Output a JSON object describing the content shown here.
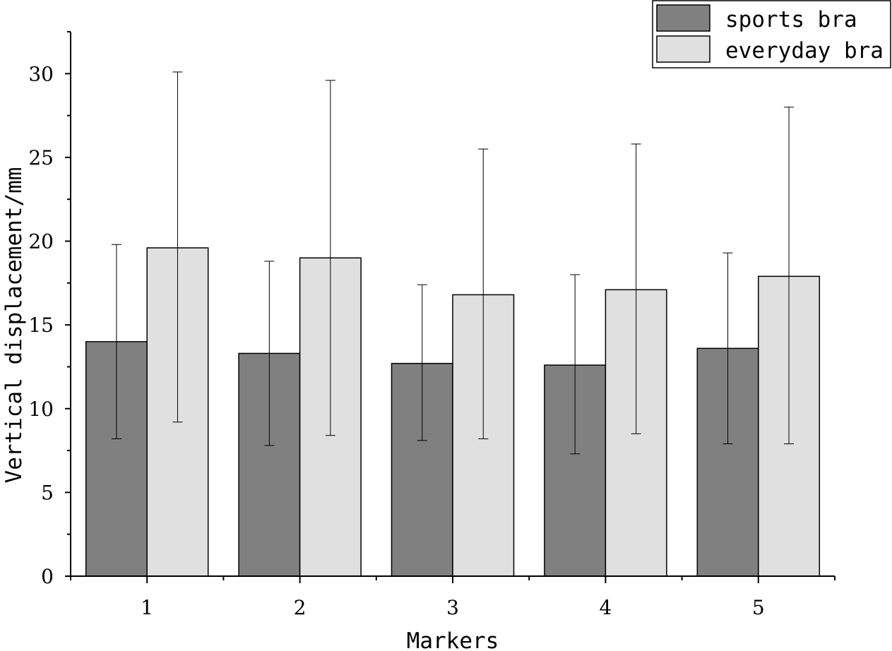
{
  "chart_data": {
    "type": "bar",
    "title": "",
    "xlabel": "Markers",
    "ylabel": "Vertical displacement/mm",
    "categories": [
      "1",
      "2",
      "3",
      "4",
      "5"
    ],
    "ylim": [
      0,
      32.5
    ],
    "yticks": [
      "0",
      "5",
      "10",
      "15",
      "20",
      "25",
      "30"
    ],
    "ytick_values": [
      0,
      5,
      10,
      15,
      20,
      25,
      30
    ],
    "grid": false,
    "legend_position": "top-right",
    "series": [
      {
        "name": "sports bra",
        "color": "#808080",
        "values": [
          14.0,
          13.3,
          12.7,
          12.6,
          13.6
        ],
        "error_low": [
          8.2,
          7.8,
          8.1,
          7.3,
          7.9
        ],
        "error_high": [
          19.8,
          18.8,
          17.4,
          18.0,
          19.3
        ]
      },
      {
        "name": "everyday bra",
        "color": "#e0e0e0",
        "values": [
          19.6,
          19.0,
          16.8,
          17.1,
          17.9
        ],
        "error_low": [
          9.2,
          8.4,
          8.2,
          8.5,
          7.9
        ],
        "error_high": [
          30.1,
          29.6,
          25.5,
          25.8,
          28.0
        ]
      }
    ]
  }
}
